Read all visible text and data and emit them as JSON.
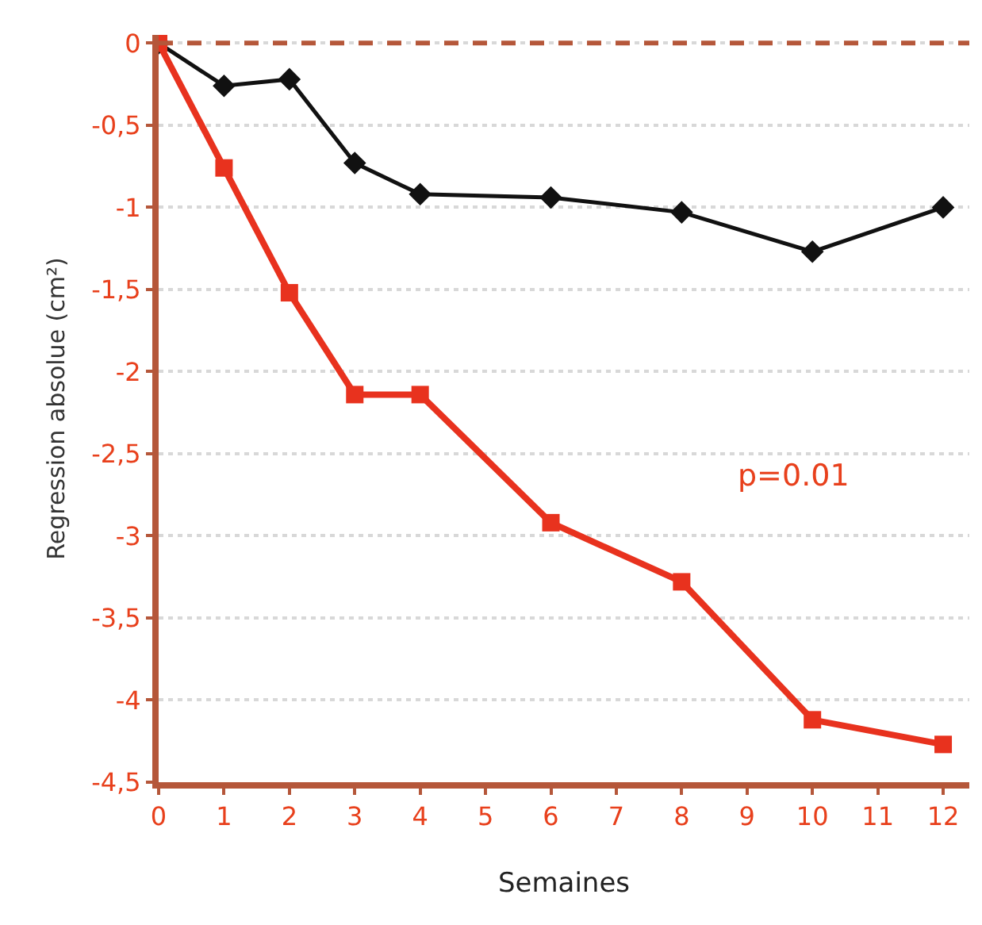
{
  "chart_data": {
    "type": "line",
    "xlabel": "Semaines",
    "ylabel": "Regression absolue (cm²)",
    "x": [
      0,
      1,
      2,
      3,
      4,
      6,
      8,
      10,
      12
    ],
    "series": [
      {
        "color": "#111111",
        "marker": "diamond",
        "values": [
          0,
          -0.26,
          -0.22,
          -0.73,
          -0.92,
          -0.94,
          -1.03,
          -1.27,
          -1.0
        ]
      },
      {
        "color": "#e8321e",
        "marker": "square",
        "values": [
          0,
          -0.76,
          -1.52,
          -2.14,
          -2.14,
          -2.92,
          -3.28,
          -4.12,
          -4.27
        ]
      }
    ],
    "xlim": [
      0,
      12.4
    ],
    "xticks": [
      0,
      1,
      2,
      3,
      4,
      5,
      6,
      7,
      8,
      9,
      10,
      11,
      12
    ],
    "ylim": [
      -4.5,
      0.05
    ],
    "yticks": [
      {
        "value": 0,
        "label": "0"
      },
      {
        "value": -0.5,
        "label": "-0,5"
      },
      {
        "value": -1,
        "label": "-1"
      },
      {
        "value": -1.5,
        "label": "-1,5"
      },
      {
        "value": -2,
        "label": "-2"
      },
      {
        "value": -2.5,
        "label": "-2,5"
      },
      {
        "value": -3,
        "label": "-3"
      },
      {
        "value": -3.5,
        "label": "-3,5"
      },
      {
        "value": -4,
        "label": "-4"
      },
      {
        "value": -4.5,
        "label": "-4,5"
      }
    ],
    "grid": "y",
    "line_style": "solid",
    "ref_lines": [
      {
        "axis": "y",
        "value": 0,
        "color": "#b5573a",
        "line_style": "dashed"
      }
    ],
    "annotations": [
      "p=0.01"
    ]
  }
}
